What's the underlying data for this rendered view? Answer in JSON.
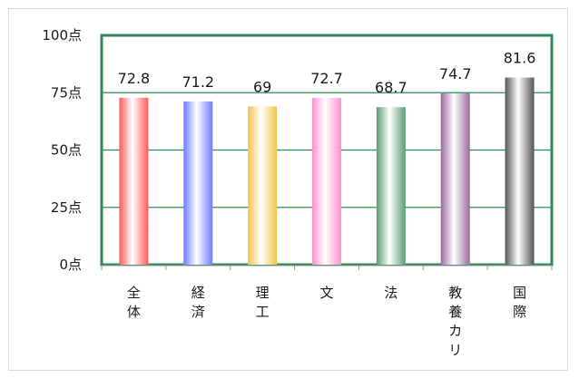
{
  "chart_data": {
    "type": "bar",
    "categories": [
      "全体",
      "経済",
      "理工",
      "文",
      "法",
      "教養カリ",
      "国際"
    ],
    "values": [
      72.8,
      71.2,
      69,
      72.7,
      68.7,
      74.7,
      81.6
    ],
    "value_labels": [
      "72.8",
      "71.2",
      "69",
      "72.7",
      "68.7",
      "74.7",
      "81.6"
    ],
    "ylim": [
      0,
      100
    ],
    "yticks": [
      "0点",
      "25点",
      "50点",
      "75点",
      "100点"
    ],
    "ytick_values": [
      0,
      25,
      50,
      75,
      100
    ],
    "grid": true,
    "title": "",
    "xlabel": "",
    "ylabel": "",
    "colors": {
      "bars": [
        "#ff5a5a",
        "#6e7cff",
        "#f2c24a",
        "#ff8fd0",
        "#5a9a72",
        "#9a6aa0",
        "#555555"
      ],
      "plot_border": "#2e8b57",
      "gridline": "#2e8b57",
      "axis": "#9a9a9a"
    }
  }
}
